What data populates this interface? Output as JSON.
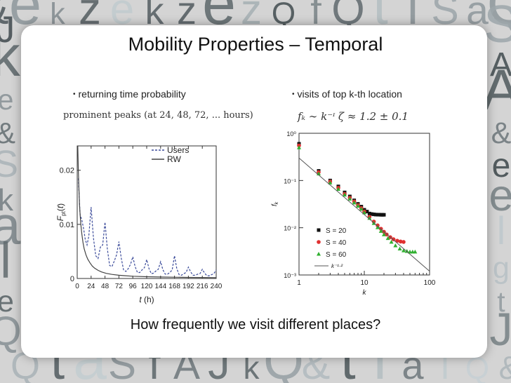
{
  "slide": {
    "title": "Mobility Properties – Temporal",
    "bullet_left": "returning time probability",
    "bullet_right": "visits of top k-th location",
    "question": "How frequently we visit different places?",
    "left_caption": "prominent peaks (at 24, 48, 72, ... hours)",
    "right_formula": "fₖ ∼ k⁻ᶦ    ζ ≈ 1.2 ± 0.1",
    "bullet_glyph": "•",
    "accent_color": "#1a1a1a"
  },
  "chart_data": [
    {
      "type": "line",
      "xlabel": "t (h)",
      "ylabel": "F_pt(t)",
      "x_ticks": [
        0,
        24,
        48,
        72,
        96,
        120,
        144,
        168,
        192,
        216,
        240
      ],
      "y_ticks": [
        0,
        0.01,
        0.02
      ],
      "y_tick_labels": [
        "0",
        "0.01",
        "0.02"
      ],
      "xlim": [
        0,
        240
      ],
      "ylim": [
        0,
        0.0245
      ],
      "legend_position": "top-right",
      "series": [
        {
          "name": "Users",
          "style": "dashed",
          "color": "#3a4a9a",
          "x": [
            2,
            5,
            8,
            11,
            14,
            17,
            20,
            24,
            28,
            32,
            36,
            40,
            44,
            48,
            52,
            56,
            60,
            64,
            68,
            72,
            76,
            80,
            84,
            88,
            92,
            96,
            100,
            104,
            108,
            112,
            116,
            120,
            124,
            128,
            132,
            136,
            140,
            144,
            148,
            152,
            156,
            160,
            164,
            168,
            172,
            176,
            180,
            184,
            188,
            192,
            196,
            200,
            204,
            208,
            212,
            216,
            220,
            224,
            228,
            232,
            236,
            240
          ],
          "y": [
            0.0185,
            0.0118,
            0.0108,
            0.0092,
            0.0072,
            0.0062,
            0.0078,
            0.0132,
            0.0075,
            0.0042,
            0.0037,
            0.0058,
            0.0062,
            0.0104,
            0.0055,
            0.0024,
            0.0022,
            0.0032,
            0.0044,
            0.0068,
            0.0038,
            0.0016,
            0.0013,
            0.0018,
            0.0026,
            0.004,
            0.0022,
            0.0011,
            0.0011,
            0.0016,
            0.002,
            0.0035,
            0.0018,
            0.0009,
            0.001,
            0.0014,
            0.0017,
            0.0031,
            0.0016,
            0.0008,
            0.0008,
            0.0011,
            0.0016,
            0.0042,
            0.0018,
            0.0007,
            0.0006,
            0.0009,
            0.0011,
            0.0021,
            0.0012,
            0.0006,
            0.0006,
            0.0008,
            0.0009,
            0.0017,
            0.001,
            0.0005,
            0.0005,
            0.0007,
            0.0009,
            0.0016
          ]
        },
        {
          "name": "RW",
          "style": "solid",
          "color": "#444444",
          "x": [
            1,
            2,
            3,
            4,
            6,
            8,
            10,
            12,
            15,
            18,
            22,
            26,
            30,
            36,
            42,
            50,
            60,
            72,
            84,
            96,
            120,
            144,
            168,
            192,
            216,
            240
          ],
          "y": [
            0.0245,
            0.02,
            0.0165,
            0.0135,
            0.0102,
            0.0082,
            0.0066,
            0.0055,
            0.0044,
            0.0036,
            0.0029,
            0.0023,
            0.0019,
            0.0015,
            0.0012,
            0.00095,
            0.00075,
            0.0006,
            0.0005,
            0.00042,
            0.00033,
            0.00027,
            0.00023,
            0.0002,
            0.00018,
            0.00016
          ]
        }
      ]
    },
    {
      "type": "scatter",
      "xlabel": "k",
      "ylabel": "f_k",
      "x_scale": "log",
      "y_scale": "log",
      "xlim": [
        1,
        100
      ],
      "ylim": [
        0.001,
        1
      ],
      "x_tick_labels": [
        "1",
        "10",
        "100"
      ],
      "y_tick_labels": [
        "10⁰",
        "10⁻¹",
        "10⁻²",
        "10⁻³"
      ],
      "legend_position": "bottom-right",
      "series": [
        {
          "name": "S = 20",
          "marker": "square",
          "color": "#111111",
          "x": [
            1,
            2,
            3,
            4,
            5,
            6,
            7,
            8,
            9,
            10,
            11,
            12,
            13,
            14,
            15,
            16,
            17,
            18,
            19,
            20
          ],
          "y": [
            0.6,
            0.16,
            0.1,
            0.075,
            0.056,
            0.046,
            0.038,
            0.032,
            0.028,
            0.024,
            0.022,
            0.02,
            0.0195,
            0.0192,
            0.019,
            0.0189,
            0.0189,
            0.0188,
            0.0188,
            0.0188
          ]
        },
        {
          "name": "S = 40",
          "marker": "circle",
          "color": "#e03030",
          "x": [
            1,
            2,
            3,
            4,
            5,
            6,
            7,
            8,
            9,
            10,
            12,
            14,
            16,
            18,
            20,
            22,
            25,
            28,
            32,
            36,
            40
          ],
          "y": [
            0.55,
            0.15,
            0.095,
            0.07,
            0.052,
            0.043,
            0.036,
            0.03,
            0.026,
            0.022,
            0.017,
            0.0135,
            0.0112,
            0.0095,
            0.0082,
            0.0072,
            0.0063,
            0.0057,
            0.0053,
            0.0051,
            0.005
          ]
        },
        {
          "name": "S = 60",
          "marker": "triangle",
          "color": "#30b030",
          "x": [
            1,
            2,
            3,
            4,
            5,
            6,
            7,
            8,
            9,
            10,
            12,
            14,
            16,
            18,
            20,
            23,
            26,
            30,
            35,
            40,
            45,
            50,
            55,
            60
          ],
          "y": [
            0.5,
            0.14,
            0.09,
            0.066,
            0.05,
            0.041,
            0.034,
            0.029,
            0.025,
            0.021,
            0.016,
            0.0125,
            0.0102,
            0.0085,
            0.0072,
            0.006,
            0.005,
            0.0042,
            0.0036,
            0.0033,
            0.0032,
            0.0031,
            0.0031,
            0.0031
          ]
        },
        {
          "name": "k⁻¹·²",
          "marker": "line",
          "color": "#555555",
          "x": [
            1,
            100
          ],
          "y": [
            0.3,
            0.0012
          ]
        }
      ]
    }
  ]
}
